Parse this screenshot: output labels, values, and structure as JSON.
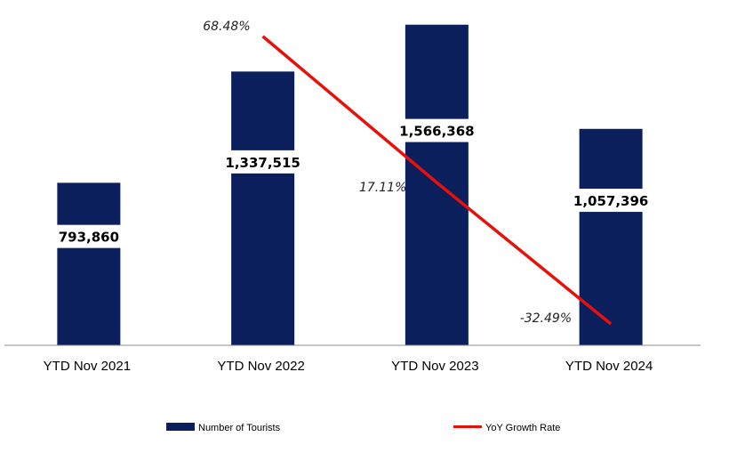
{
  "chart_data": {
    "type": "bar",
    "categories": [
      "YTD Nov 2021",
      "YTD Nov 2022",
      "YTD Nov 2023",
      "YTD Nov 2024"
    ],
    "series": [
      {
        "name": "Number of Tourists",
        "kind": "bar",
        "axis": "left",
        "color": "#0a1f5c",
        "values": [
          793860,
          1337515,
          1566368,
          1057396
        ],
        "labels": [
          "793,860",
          "1,337,515",
          "1,566,368",
          "1,057,396"
        ]
      },
      {
        "name": "YoY Growth Rate",
        "kind": "line",
        "axis": "right",
        "color": "#e8100a",
        "values": [
          null,
          68.48,
          17.11,
          -32.49
        ],
        "labels": [
          "",
          "68.48%",
          "17.11%",
          "-32.49%"
        ]
      }
    ],
    "ylim": [
      0,
      1600000
    ],
    "y2lim": [
      -40,
      75
    ],
    "grid": false,
    "legend_position": "bottom"
  }
}
